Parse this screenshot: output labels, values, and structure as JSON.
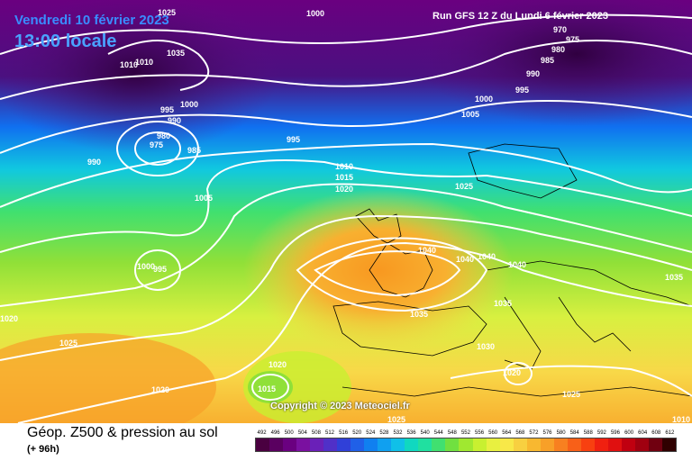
{
  "header": {
    "date": "Vendredi 10 février 2023",
    "time": "13:00 locale",
    "run": "Run GFS 12 Z du Lundi 6 février 2023"
  },
  "copyright": "Copyright © 2023 Meteociel.fr",
  "footer": {
    "title": "Géop. Z500 & pression au sol",
    "subtitle": "(+ 96h)"
  },
  "legend": {
    "labels": [
      "492",
      "496",
      "500",
      "504",
      "508",
      "512",
      "516",
      "520",
      "524",
      "528",
      "532",
      "536",
      "540",
      "544",
      "548",
      "552",
      "556",
      "560",
      "564",
      "568",
      "572",
      "576",
      "580",
      "584",
      "588",
      "592",
      "596",
      "600",
      "604",
      "608",
      "612"
    ],
    "colors": [
      "#4a0040",
      "#5a0060",
      "#6a0080",
      "#7a10a0",
      "#6a20b8",
      "#5030c8",
      "#3040d8",
      "#2060e8",
      "#1080f0",
      "#10a0f0",
      "#10c0e8",
      "#10d8c0",
      "#20e0a0",
      "#40e070",
      "#70e040",
      "#a0e830",
      "#c8f030",
      "#e8f040",
      "#f8e848",
      "#f8d040",
      "#f8b830",
      "#f8a028",
      "#f88020",
      "#f86018",
      "#f84010",
      "#f02010",
      "#e01010",
      "#c00010",
      "#a00010",
      "#700010",
      "#300000"
    ]
  },
  "isobars": [
    {
      "text": "1025"
    },
    {
      "text": "1000"
    },
    {
      "text": "970"
    },
    {
      "text": "975"
    },
    {
      "text": "980"
    },
    {
      "text": "985"
    },
    {
      "text": "990"
    },
    {
      "text": "995"
    },
    {
      "text": "1000"
    },
    {
      "text": "1005"
    },
    {
      "text": "1035"
    },
    {
      "text": "1010"
    },
    {
      "text": "1010"
    },
    {
      "text": "1000"
    },
    {
      "text": "995"
    },
    {
      "text": "990"
    },
    {
      "text": "980"
    },
    {
      "text": "975"
    },
    {
      "text": "985"
    },
    {
      "text": "990"
    },
    {
      "text": "995"
    },
    {
      "text": "1005"
    },
    {
      "text": "1010"
    },
    {
      "text": "1015"
    },
    {
      "text": "1020"
    },
    {
      "text": "1025"
    },
    {
      "text": "1040"
    },
    {
      "text": "1040"
    },
    {
      "text": "1040"
    },
    {
      "text": "1040"
    },
    {
      "text": "1035"
    },
    {
      "text": "1035"
    },
    {
      "text": "1035"
    },
    {
      "text": "1030"
    },
    {
      "text": "1020"
    },
    {
      "text": "1025"
    },
    {
      "text": "1000"
    },
    {
      "text": "995"
    },
    {
      "text": "1020"
    },
    {
      "text": "1025"
    },
    {
      "text": "1020"
    },
    {
      "text": "1015"
    },
    {
      "text": "1020"
    },
    {
      "text": "1025"
    },
    {
      "text": "1010"
    }
  ]
}
